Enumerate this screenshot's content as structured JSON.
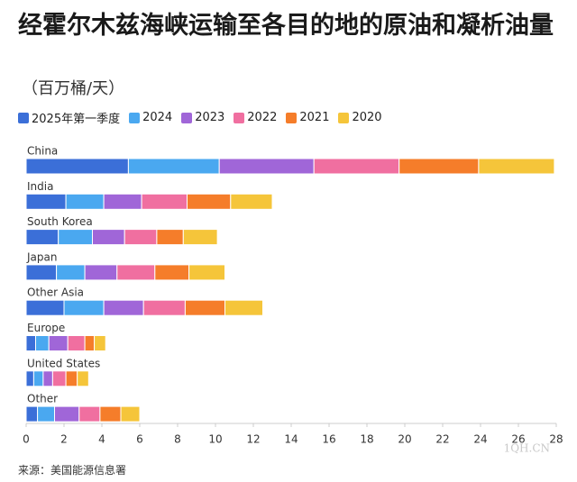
{
  "chart_data": {
    "type": "stacked-bar-horizontal",
    "title": "经霍尔木兹海峡运输至各目的地的原油和凝析油量",
    "subtitle": "（百万桶/天）",
    "source": "来源：美国能源信息署",
    "watermark": "1QH.CN",
    "categories": [
      "China",
      "India",
      "South Korea",
      "Japan",
      "Other Asia",
      "Europe",
      "United States",
      "Other"
    ],
    "series": [
      {
        "name": "2025年第一季度",
        "color": "#3b6fd8",
        "values": [
          5.4,
          2.1,
          1.7,
          1.6,
          2.0,
          0.5,
          0.4,
          0.6
        ]
      },
      {
        "name": "2024",
        "color": "#4aa8f0",
        "values": [
          4.8,
          2.0,
          1.8,
          1.5,
          2.1,
          0.7,
          0.5,
          0.9
        ]
      },
      {
        "name": "2023",
        "color": "#a066d8",
        "values": [
          5.0,
          2.0,
          1.7,
          1.7,
          2.1,
          1.0,
          0.5,
          1.3
        ]
      },
      {
        "name": "2022",
        "color": "#f06fa0",
        "values": [
          4.5,
          2.4,
          1.7,
          2.0,
          2.2,
          0.9,
          0.7,
          1.1
        ]
      },
      {
        "name": "2021",
        "color": "#f57d2a",
        "values": [
          4.2,
          2.3,
          1.4,
          1.8,
          2.1,
          0.5,
          0.6,
          1.1
        ]
      },
      {
        "name": "2020",
        "color": "#f5c53a",
        "values": [
          4.0,
          2.2,
          1.8,
          1.9,
          2.0,
          0.6,
          0.6,
          1.0
        ]
      }
    ],
    "xlim": [
      0,
      28
    ],
    "xticks": [
      0,
      2,
      4,
      6,
      8,
      10,
      12,
      14,
      16,
      18,
      20,
      22,
      24,
      26,
      28
    ],
    "grid": false
  }
}
